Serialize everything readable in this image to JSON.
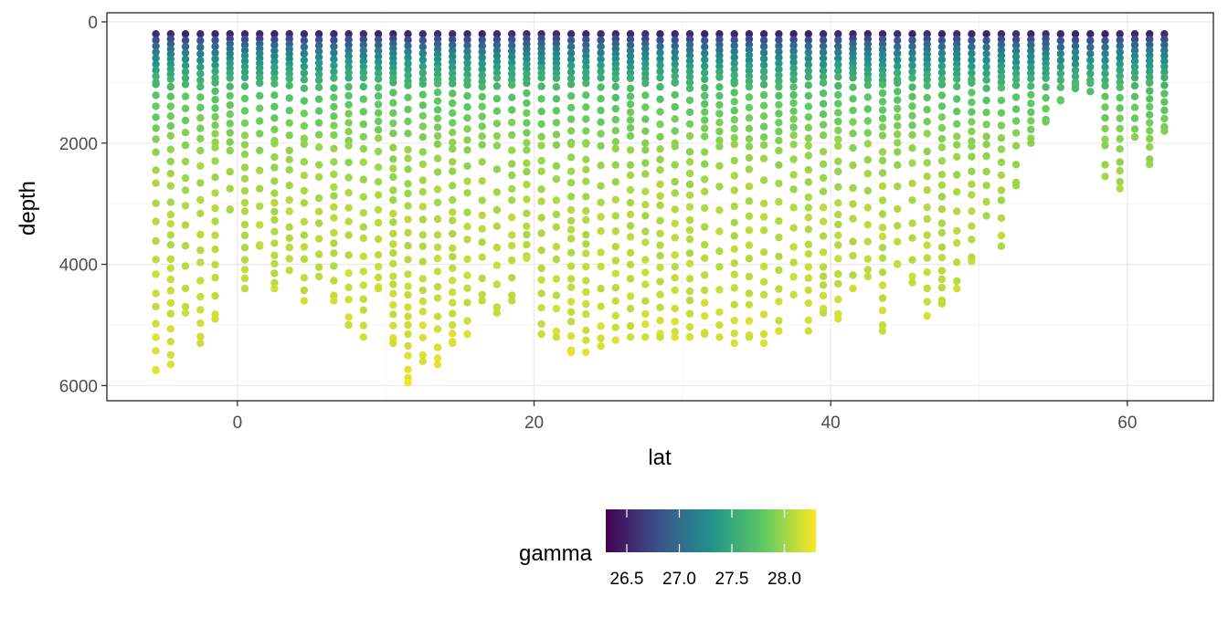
{
  "chart_data": {
    "type": "scatter",
    "title": "",
    "xlabel": "lat",
    "ylabel": "depth",
    "xlim": [
      -8.8,
      65.8
    ],
    "ylim": [
      -150,
      6250
    ],
    "y_reversed": true,
    "x_ticks": [
      0,
      20,
      40,
      60
    ],
    "x_tick_labels": [
      "0",
      "20",
      "40",
      "60"
    ],
    "y_ticks": [
      0,
      2000,
      4000,
      6000
    ],
    "y_tick_labels": [
      "0",
      "2000",
      "4000",
      "6000"
    ],
    "grid": true,
    "legend": {
      "title": "gamma",
      "position": "bottom",
      "type": "colorbar",
      "range": [
        26.3,
        28.3
      ],
      "ticks": [
        26.5,
        27.0,
        27.5,
        28.0
      ],
      "tick_labels": [
        "26.5",
        "27.0",
        "27.5",
        "28.0"
      ],
      "colormap": [
        "#440154",
        "#3b528b",
        "#21918c",
        "#5ec962",
        "#fde725"
      ]
    },
    "series": [
      {
        "values": [
          {
            "lat": -5.5,
            "max_depth": 5750
          },
          {
            "lat": -4.5,
            "max_depth": 5650
          },
          {
            "lat": -3.5,
            "max_depth": 4800
          },
          {
            "lat": -2.5,
            "max_depth": 5300
          },
          {
            "lat": -1.5,
            "max_depth": 4900
          },
          {
            "lat": -0.5,
            "max_depth": 3100
          },
          {
            "lat": 0.5,
            "max_depth": 4400
          },
          {
            "lat": 1.5,
            "max_depth": 3700
          },
          {
            "lat": 2.5,
            "max_depth": 4400
          },
          {
            "lat": 3.5,
            "max_depth": 4100
          },
          {
            "lat": 4.5,
            "max_depth": 4600
          },
          {
            "lat": 5.5,
            "max_depth": 4200
          },
          {
            "lat": 6.5,
            "max_depth": 4600
          },
          {
            "lat": 7.5,
            "max_depth": 5000
          },
          {
            "lat": 8.5,
            "max_depth": 5200
          },
          {
            "lat": 9.5,
            "max_depth": 4400
          },
          {
            "lat": 10.5,
            "max_depth": 5300
          },
          {
            "lat": 11.5,
            "max_depth": 5950
          },
          {
            "lat": 12.5,
            "max_depth": 5600
          },
          {
            "lat": 13.5,
            "max_depth": 5650
          },
          {
            "lat": 14.5,
            "max_depth": 5300
          },
          {
            "lat": 15.5,
            "max_depth": 5150
          },
          {
            "lat": 16.5,
            "max_depth": 4600
          },
          {
            "lat": 17.5,
            "max_depth": 4800
          },
          {
            "lat": 18.5,
            "max_depth": 4600
          },
          {
            "lat": 19.5,
            "max_depth": 3900
          },
          {
            "lat": 20.5,
            "max_depth": 5150
          },
          {
            "lat": 21.5,
            "max_depth": 5200
          },
          {
            "lat": 22.5,
            "max_depth": 5450
          },
          {
            "lat": 23.5,
            "max_depth": 5450
          },
          {
            "lat": 24.5,
            "max_depth": 5350
          },
          {
            "lat": 25.5,
            "max_depth": 5250
          },
          {
            "lat": 26.5,
            "max_depth": 5200
          },
          {
            "lat": 27.5,
            "max_depth": 5200
          },
          {
            "lat": 28.5,
            "max_depth": 5200
          },
          {
            "lat": 29.5,
            "max_depth": 5200
          },
          {
            "lat": 30.5,
            "max_depth": 5200
          },
          {
            "lat": 31.5,
            "max_depth": 5150
          },
          {
            "lat": 32.5,
            "max_depth": 5200
          },
          {
            "lat": 33.5,
            "max_depth": 5300
          },
          {
            "lat": 34.5,
            "max_depth": 5200
          },
          {
            "lat": 35.5,
            "max_depth": 5300
          },
          {
            "lat": 36.5,
            "max_depth": 5100
          },
          {
            "lat": 37.5,
            "max_depth": 4500
          },
          {
            "lat": 38.5,
            "max_depth": 5100
          },
          {
            "lat": 39.5,
            "max_depth": 4800
          },
          {
            "lat": 40.5,
            "max_depth": 4900
          },
          {
            "lat": 41.5,
            "max_depth": 4400
          },
          {
            "lat": 42.5,
            "max_depth": 4200
          },
          {
            "lat": 43.5,
            "max_depth": 5100
          },
          {
            "lat": 44.5,
            "max_depth": 4000
          },
          {
            "lat": 45.5,
            "max_depth": 4300
          },
          {
            "lat": 46.5,
            "max_depth": 4850
          },
          {
            "lat": 47.5,
            "max_depth": 4650
          },
          {
            "lat": 48.5,
            "max_depth": 4400
          },
          {
            "lat": 49.5,
            "max_depth": 3950
          },
          {
            "lat": 50.5,
            "max_depth": 3200
          },
          {
            "lat": 51.5,
            "max_depth": 3700
          },
          {
            "lat": 52.5,
            "max_depth": 2700
          },
          {
            "lat": 53.5,
            "max_depth": 2000
          },
          {
            "lat": 54.5,
            "max_depth": 1650
          },
          {
            "lat": 55.5,
            "max_depth": 1300
          },
          {
            "lat": 56.5,
            "max_depth": 1100
          },
          {
            "lat": 57.5,
            "max_depth": 1150
          },
          {
            "lat": 58.5,
            "max_depth": 2550
          },
          {
            "lat": 59.5,
            "max_depth": 2750
          },
          {
            "lat": 60.5,
            "max_depth": 1900
          },
          {
            "lat": 61.5,
            "max_depth": 2350
          },
          {
            "lat": 62.5,
            "max_depth": 1800
          }
        ],
        "depth_sampling": "cast every 1 degree latitude; bottles dense near the surface and sparse at depth",
        "gamma_vs_depth": [
          {
            "depth": 150,
            "gamma": 26.4
          },
          {
            "depth": 300,
            "gamma": 26.8
          },
          {
            "depth": 500,
            "gamma": 27.15
          },
          {
            "depth": 800,
            "gamma": 27.45
          },
          {
            "depth": 1200,
            "gamma": 27.75
          },
          {
            "depth": 2000,
            "gamma": 27.95
          },
          {
            "depth": 3000,
            "gamma": 28.05
          },
          {
            "depth": 4000,
            "gamma": 28.1
          },
          {
            "depth": 5000,
            "gamma": 28.15
          },
          {
            "depth": 6000,
            "gamma": 28.25
          }
        ]
      }
    ]
  }
}
